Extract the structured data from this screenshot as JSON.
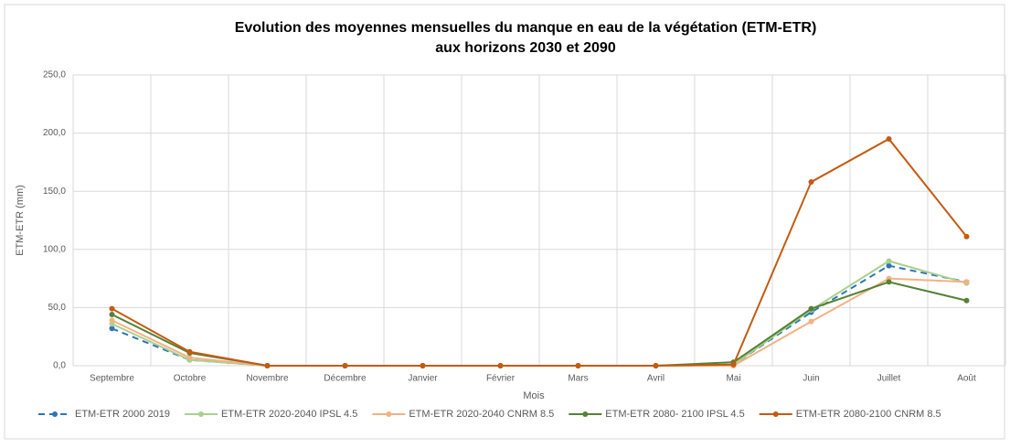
{
  "chart_data": {
    "type": "line",
    "title": [
      "Evolution des moyennes mensuelles du manque en eau de la végétation (ETM-ETR)",
      "aux horizons 2030 et 2090"
    ],
    "x_label": "Mois",
    "y_label": "ETM-ETR (mm)",
    "categories": [
      "Septembre",
      "Octobre",
      "Novembre",
      "Décembre",
      "Janvier",
      "Février",
      "Mars",
      "Avril",
      "Mai",
      "Juin",
      "Juillet",
      "Août"
    ],
    "series": [
      {
        "name": "ETM-ETR 2000 2019",
        "color": "#2e75b6",
        "dashed": true,
        "values": [
          32,
          5,
          0,
          0,
          0,
          0,
          0,
          0,
          1,
          46,
          86,
          72
        ]
      },
      {
        "name": "ETM-ETR 2020-2040 IPSL 4.5",
        "color": "#a9d18e",
        "dashed": false,
        "values": [
          36,
          5,
          0,
          0,
          0,
          0,
          0,
          0,
          1,
          48,
          90,
          71
        ]
      },
      {
        "name": "ETM-ETR 2020-2040 CNRM 8.5",
        "color": "#f4b183",
        "dashed": false,
        "values": [
          39,
          7,
          0,
          0,
          0,
          0,
          0,
          0,
          0,
          38,
          75,
          72
        ]
      },
      {
        "name": "ETM-ETR 2080- 2100 IPSL 4.5",
        "color": "#548235",
        "dashed": false,
        "values": [
          44,
          11,
          0,
          0,
          0,
          0,
          0,
          0,
          3,
          49,
          72,
          56
        ]
      },
      {
        "name": "ETM-ETR 2080-2100 CNRM 8.5",
        "color": "#c55a11",
        "dashed": false,
        "values": [
          49,
          12,
          0,
          0,
          0,
          0,
          0,
          0,
          1,
          158,
          195,
          111
        ]
      }
    ],
    "ylim": [
      0,
      250
    ],
    "yticks": [
      {
        "value": 0,
        "label": "0,0"
      },
      {
        "value": 50,
        "label": "50,0"
      },
      {
        "value": 100,
        "label": "100,0"
      },
      {
        "value": 150,
        "label": "150,0"
      },
      {
        "value": 200,
        "label": "200,0"
      },
      {
        "value": 250,
        "label": "250,0"
      }
    ],
    "grid": true,
    "legend": "bottom"
  }
}
